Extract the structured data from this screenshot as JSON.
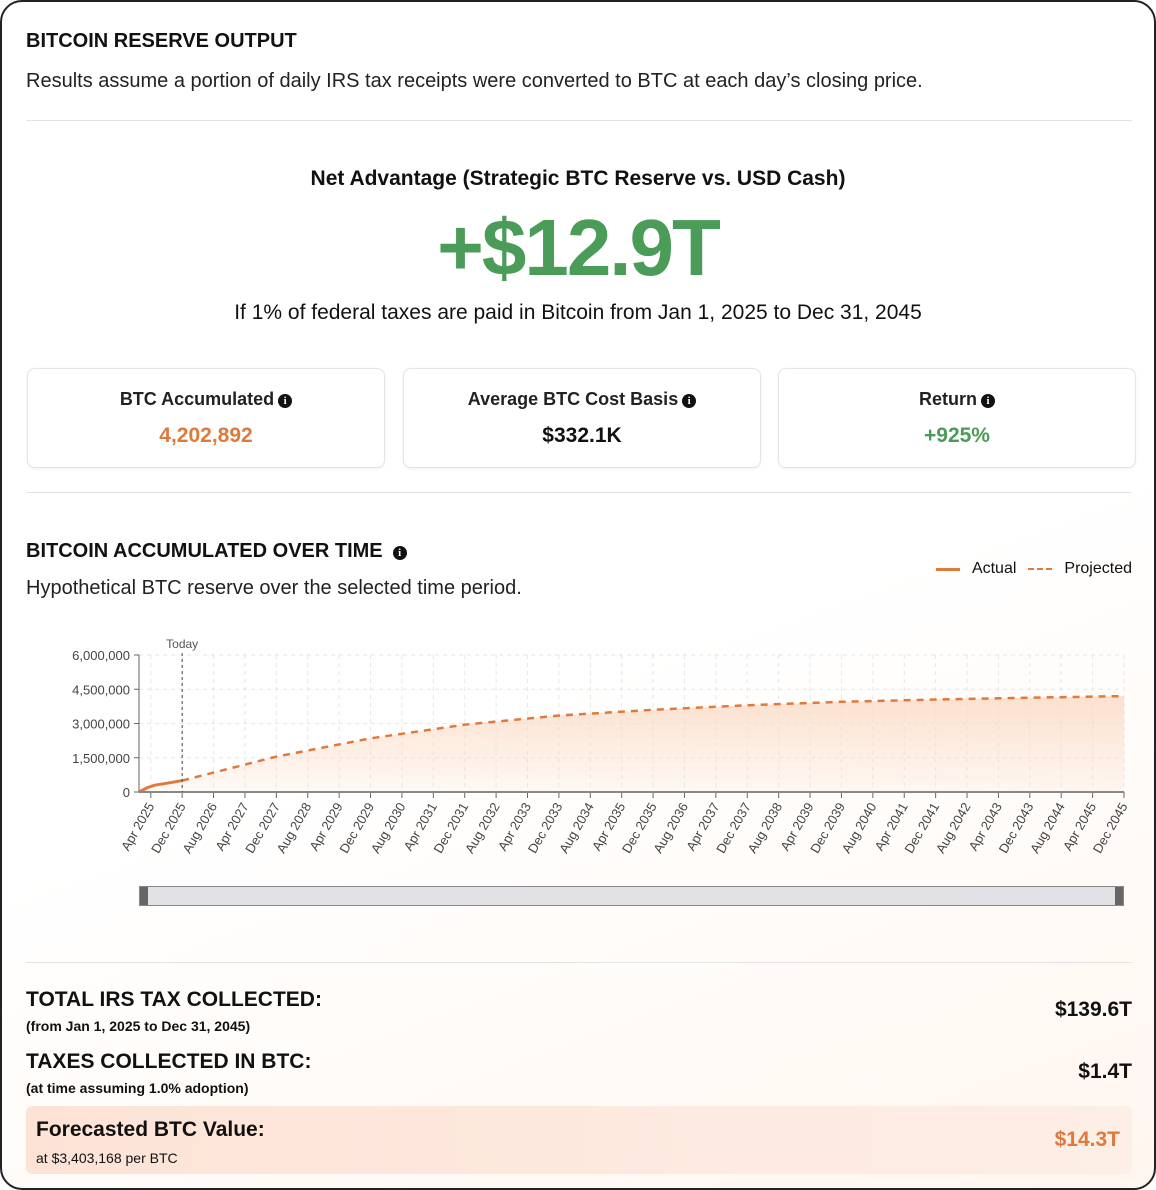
{
  "header": {
    "title": "BITCOIN RESERVE OUTPUT",
    "subtitle": "Results assume a portion of daily IRS tax receipts were converted to BTC at each day’s closing price."
  },
  "hero": {
    "label": "Net Advantage (Strategic BTC Reserve vs. USD Cash)",
    "value": "+$12.9T",
    "caption": "If 1% of federal taxes are paid in Bitcoin from Jan 1, 2025 to Dec 31, 2045"
  },
  "stats": [
    {
      "label": "BTC Accumulated",
      "value": "4,202,892",
      "color": "#e07a3c"
    },
    {
      "label": "Average BTC Cost Basis",
      "value": "$332.1K",
      "color": "#111111"
    },
    {
      "label": "Return",
      "value": "+925%",
      "color": "#4a9c58"
    }
  ],
  "chart_section": {
    "title": "BITCOIN ACCUMULATED OVER TIME",
    "subtitle": "Hypothetical BTC reserve over the selected time period.",
    "legend_actual": "Actual",
    "legend_projected": "Projected",
    "today_label": "Today"
  },
  "chart_data": {
    "type": "area",
    "ylim": [
      0,
      6000000
    ],
    "yticks": [
      0,
      1500000,
      3000000,
      4500000,
      6000000
    ],
    "ytick_labels": [
      "0",
      "1,500,000",
      "3,000,000",
      "4,500,000",
      "6,000,000"
    ],
    "xtick_labels": [
      "Apr 2025",
      "Dec 2025",
      "Aug 2026",
      "Apr 2027",
      "Dec 2027",
      "Aug 2028",
      "Apr 2029",
      "Dec 2029",
      "Aug 2030",
      "Apr 2031",
      "Dec 2031",
      "Aug 2032",
      "Apr 2033",
      "Dec 2033",
      "Aug 2034",
      "Apr 2035",
      "Dec 2035",
      "Aug 2036",
      "Apr 2037",
      "Dec 2037",
      "Aug 2038",
      "Apr 2039",
      "Dec 2039",
      "Aug 2040",
      "Apr 2041",
      "Dec 2041",
      "Aug 2042",
      "Apr 2043",
      "Dec 2043",
      "Aug 2044",
      "Apr 2045",
      "Dec 2045"
    ],
    "x_unit": "months since Jan 2025",
    "today_month": 11,
    "series": [
      {
        "name": "Actual",
        "x": [
          0,
          2,
          4,
          7,
          9,
          11
        ],
        "y": [
          0,
          180000,
          300000,
          380000,
          440000,
          500000
        ]
      },
      {
        "name": "Projected",
        "x": [
          11,
          35,
          59,
          83,
          107,
          131,
          155,
          179,
          203,
          227,
          251
        ],
        "y": [
          500000,
          1550000,
          2350000,
          2950000,
          3350000,
          3600000,
          3800000,
          3950000,
          4050000,
          4130000,
          4200000
        ]
      }
    ],
    "colors": {
      "line": "#e07a3c",
      "fill": "#fbd9c2"
    }
  },
  "summary": {
    "total_label": "TOTAL IRS TAX COLLECTED:",
    "total_sub": "(from Jan 1, 2025 to Dec 31, 2045)",
    "total_value": "$139.6T",
    "btc_label": "TAXES COLLECTED IN BTC:",
    "btc_sub": "(at time assuming 1.0% adoption)",
    "btc_value": "$1.4T",
    "forecast_label": "Forecasted BTC Value:",
    "forecast_sub": "at $3,403,168 per BTC",
    "forecast_value": "$14.3T"
  }
}
